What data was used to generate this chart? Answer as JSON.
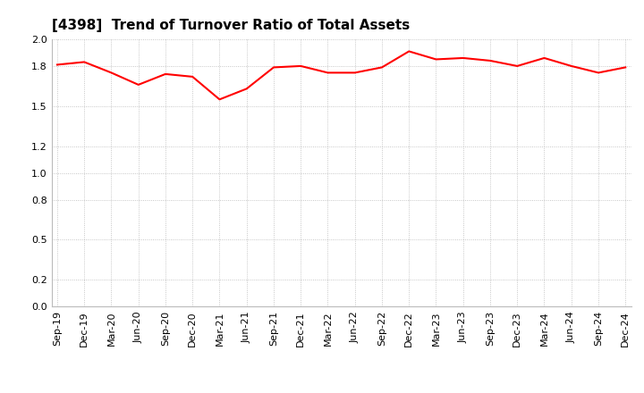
{
  "title": "[4398]  Trend of Turnover Ratio of Total Assets",
  "x_labels": [
    "Sep-19",
    "Dec-19",
    "Mar-20",
    "Jun-20",
    "Sep-20",
    "Dec-20",
    "Mar-21",
    "Jun-21",
    "Sep-21",
    "Dec-21",
    "Mar-22",
    "Jun-22",
    "Sep-22",
    "Dec-22",
    "Mar-23",
    "Jun-23",
    "Sep-23",
    "Dec-23",
    "Mar-24",
    "Jun-24",
    "Sep-24",
    "Dec-24"
  ],
  "y_values": [
    1.81,
    1.83,
    1.75,
    1.66,
    1.74,
    1.72,
    1.55,
    1.63,
    1.79,
    1.8,
    1.75,
    1.75,
    1.79,
    1.91,
    1.85,
    1.86,
    1.84,
    1.8,
    1.86,
    1.8,
    1.75,
    1.79
  ],
  "line_color": "#FF0000",
  "line_width": 1.5,
  "ylim": [
    0.0,
    2.0
  ],
  "yticks": [
    0.0,
    0.2,
    0.5,
    0.8,
    1.0,
    1.2,
    1.5,
    1.8,
    2.0
  ],
  "grid_color": "#999999",
  "background_color": "#ffffff",
  "title_fontsize": 11,
  "tick_fontsize": 8,
  "title_color": "#000000"
}
